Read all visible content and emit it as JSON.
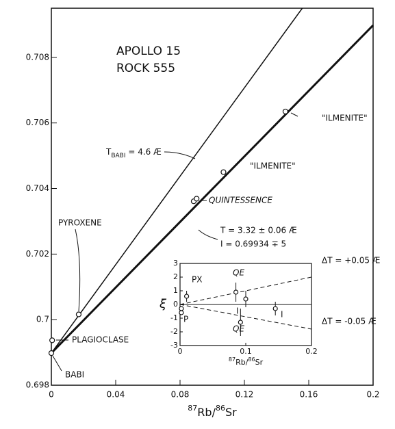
{
  "chart_data": [
    {
      "type": "scatter",
      "x_label": [
        "87",
        "Rb/",
        "86",
        "Sr"
      ],
      "x": [
        0,
        0.0005,
        0.017,
        0.0885,
        0.0903,
        0.107,
        0.1455
      ],
      "values": [
        0.69898,
        0.69937,
        0.70016,
        0.70361,
        0.70369,
        0.7045,
        0.70635
      ],
      "lines": [
        {
          "x": [
            0,
            0.2
          ],
          "values": [
            0.69898,
            0.70898
          ]
        },
        {
          "x": [
            0,
            0.156
          ],
          "values": [
            0.69898,
            0.7095
          ]
        }
      ],
      "xlim": [
        0,
        0.2
      ],
      "ylim": [
        0.698,
        0.7095
      ],
      "xticks": [
        0,
        0.04,
        0.08,
        0.12,
        0.16,
        0.2
      ],
      "yticks": [
        0.698,
        0.7,
        0.702,
        0.704,
        0.706,
        0.708
      ],
      "annotations": [
        "APOLLO 15",
        "ROCK 555",
        [
          "T",
          "BABI",
          " = 4.6 Æ"
        ],
        "\"ILMENITE\"",
        "\"ILMENITE\"",
        "QUINTESSENCE",
        "T = 3.32 ± 0.06 Æ",
        "I = 0.69934 ∓ 5",
        "PYROXENE",
        "PLAGIOCLASE",
        "BABI"
      ]
    },
    {
      "type": "scatter",
      "y_label": "ξ",
      "x_label": [
        "87",
        "Rb/",
        "86",
        "Sr"
      ],
      "x": [
        0.002,
        0.002,
        0.01,
        0.085,
        0.1,
        0.092,
        0.145
      ],
      "values": [
        -0.3,
        -0.6,
        0.6,
        0.9,
        0.4,
        -1.3,
        -0.3
      ],
      "errors": [
        null,
        null,
        0.4,
        0.7,
        0.6,
        1.0,
        0.5
      ],
      "lines": [
        {
          "x": [
            0,
            0.2
          ],
          "values": [
            0,
            2
          ],
          "dashed": true
        },
        {
          "x": [
            0,
            0.2
          ],
          "values": [
            0,
            -1.8
          ],
          "dashed": true
        },
        {
          "x": [
            0,
            0.2
          ],
          "values": [
            0,
            0
          ]
        }
      ],
      "xlim": [
        0,
        0.2
      ],
      "ylim": [
        -3,
        3
      ],
      "xticks": [
        0,
        0.1,
        0.2
      ],
      "yticks": [
        3,
        2,
        1,
        0,
        -1,
        -2,
        -3
      ],
      "annotations": [
        "PX",
        "QE",
        "QE",
        "I",
        "I",
        "P",
        "ΔT = +0.05 Æ",
        "ΔT = -0.05 Æ"
      ]
    }
  ]
}
